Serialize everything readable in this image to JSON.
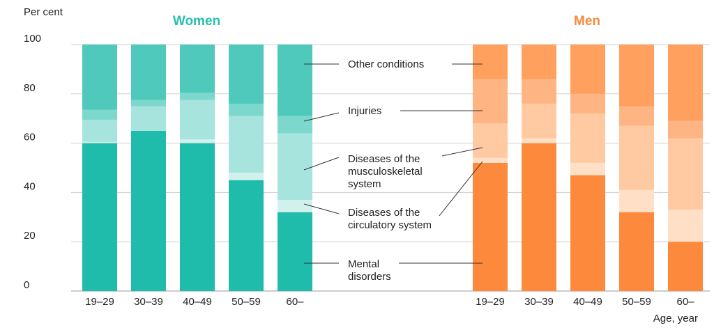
{
  "chart_data": {
    "type": "bar",
    "stacked": true,
    "y_axis_label": "Per cent",
    "x_axis_label": "Age, year",
    "ylim": [
      0,
      100
    ],
    "yticks": [
      0,
      20,
      40,
      60,
      80,
      100
    ],
    "grid": true,
    "panels": [
      {
        "title": "Women",
        "title_color": "#2bbfaa",
        "categories": [
          "19–29",
          "30–39",
          "40–49",
          "50–59",
          "60–"
        ],
        "series": [
          {
            "name": "Mental disorders",
            "color": "#1fbcab",
            "values": [
              60,
              65,
              60,
              45,
              32
            ]
          },
          {
            "name": "Diseases of the circulatory system",
            "color": "#d2f0ec",
            "values": [
              0.5,
              0,
              1.5,
              3,
              5
            ]
          },
          {
            "name": "Diseases of the musculoskeletal system",
            "color": "#a7e4dd",
            "values": [
              9,
              10,
              16,
              23,
              27
            ]
          },
          {
            "name": "Injuries",
            "color": "#7cd7cd",
            "values": [
              4,
              2.5,
              3,
              5,
              7
            ]
          },
          {
            "name": "Other conditions",
            "color": "#4ec9bb",
            "values": [
              26.5,
              22.5,
              19.5,
              24,
              29
            ]
          }
        ]
      },
      {
        "title": "Men",
        "title_color": "#f58b3f",
        "categories": [
          "19–29",
          "30–39",
          "40–49",
          "50–59",
          "60–"
        ],
        "series": [
          {
            "name": "Mental disorders",
            "color": "#fd8a3c",
            "values": [
              52,
              60,
              47,
              32,
              20
            ]
          },
          {
            "name": "Diseases of the circulatory system",
            "color": "#ffe0c7",
            "values": [
              2,
              2,
              5,
              9,
              13
            ]
          },
          {
            "name": "Diseases of the musculoskeletal system",
            "color": "#ffc9a1",
            "values": [
              14,
              14,
              20,
              26,
              29
            ]
          },
          {
            "name": "Injuries",
            "color": "#ffb583",
            "values": [
              18,
              10,
              8,
              8,
              7
            ]
          },
          {
            "name": "Other conditions",
            "color": "#ffa05f",
            "values": [
              14,
              14,
              20,
              25,
              31
            ]
          }
        ]
      }
    ],
    "annotations": [
      {
        "lines": [
          "Other conditions"
        ]
      },
      {
        "lines": [
          "Injuries"
        ]
      },
      {
        "lines": [
          "Diseases of the",
          "musculoskeletal",
          "system"
        ]
      },
      {
        "lines": [
          "Diseases of the",
          "circulatory system"
        ]
      },
      {
        "lines": [
          "Mental",
          "disorders"
        ]
      }
    ]
  }
}
